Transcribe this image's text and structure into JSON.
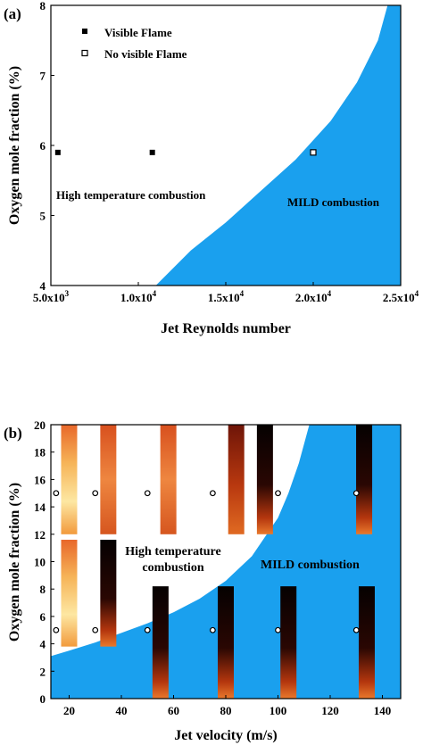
{
  "chart_data": [
    {
      "panel_label": "(a)",
      "type": "scatter",
      "xlabel": "Jet Reynolds number",
      "ylabel": "Oxygen mole fraction (%)",
      "xlim": [
        5000,
        25000
      ],
      "ylim": [
        4,
        8
      ],
      "x_ticks": [
        5000,
        10000,
        15000,
        20000,
        25000
      ],
      "x_tick_labels": [
        {
          "mant": "5.0x10",
          "exp": "3"
        },
        {
          "mant": "1.0x10",
          "exp": "4"
        },
        {
          "mant": "1.5x10",
          "exp": "4"
        },
        {
          "mant": "2.0x10",
          "exp": "4"
        },
        {
          "mant": "2.5x10",
          "exp": "4"
        }
      ],
      "y_ticks": [
        4,
        5,
        6,
        7,
        8
      ],
      "y_tick_labels": [
        "4",
        "5",
        "6",
        "7",
        "8"
      ],
      "legend_position": "top-left",
      "series": [
        {
          "name": "Visible Flame",
          "marker": "filled-square",
          "points": [
            [
              5400,
              5.9
            ],
            [
              10800,
              5.9
            ]
          ]
        },
        {
          "name": "No visible Flame",
          "marker": "open-square",
          "points": [
            [
              20000,
              5.9
            ]
          ]
        }
      ],
      "region_boundary": [
        [
          11000,
          4.0
        ],
        [
          13000,
          4.5
        ],
        [
          15000,
          4.9
        ],
        [
          17000,
          5.35
        ],
        [
          19000,
          5.8
        ],
        [
          21000,
          6.35
        ],
        [
          22500,
          6.9
        ],
        [
          23700,
          7.5
        ],
        [
          24250,
          8.0
        ]
      ],
      "region_color": "#1aa0ee",
      "annotations": [
        "High temperature combustion",
        "MILD combustion"
      ]
    },
    {
      "panel_label": "(b)",
      "type": "scatter",
      "xlabel": "Jet velocity (m/s)",
      "ylabel": "Oxygen mole fraction (%)",
      "xlim": [
        13,
        147
      ],
      "ylim": [
        0,
        20
      ],
      "x_ticks": [
        20,
        40,
        60,
        80,
        100,
        120,
        140
      ],
      "x_tick_labels": [
        "20",
        "40",
        "60",
        "80",
        "100",
        "120",
        "140"
      ],
      "y_ticks": [
        0,
        2,
        4,
        6,
        8,
        10,
        12,
        14,
        16,
        18,
        20
      ],
      "y_tick_labels": [
        "0",
        "2",
        "4",
        "6",
        "8",
        "10",
        "12",
        "14",
        "16",
        "18",
        "20"
      ],
      "series": [
        {
          "marker": "open-circle",
          "points": [
            [
              15,
              15
            ],
            [
              30,
              15
            ],
            [
              50,
              15
            ],
            [
              75,
              15
            ],
            [
              100,
              15
            ],
            [
              130,
              15
            ],
            [
              15,
              5
            ],
            [
              30,
              5
            ],
            [
              50,
              5
            ],
            [
              75,
              5
            ],
            [
              100,
              5
            ],
            [
              130,
              5
            ]
          ]
        }
      ],
      "region_boundary": [
        [
          13,
          3.1
        ],
        [
          20,
          3.5
        ],
        [
          30,
          4.1
        ],
        [
          40,
          4.8
        ],
        [
          50,
          5.5
        ],
        [
          60,
          6.3
        ],
        [
          70,
          7.3
        ],
        [
          80,
          8.6
        ],
        [
          90,
          10.4
        ],
        [
          100,
          13.2
        ],
        [
          104,
          15.0
        ],
        [
          108,
          17.2
        ],
        [
          112,
          20.0
        ]
      ],
      "region_color": "#1aa0ee",
      "annotations": [
        "High temperature",
        "combustion",
        "MILD combustion"
      ],
      "flame_images": [
        {
          "x": 20,
          "ytop": 20,
          "ybot": 12,
          "tone": "bright"
        },
        {
          "x": 35,
          "ytop": 20,
          "ybot": 12,
          "tone": "orange"
        },
        {
          "x": 58,
          "ytop": 20,
          "ybot": 12,
          "tone": "orange"
        },
        {
          "x": 84,
          "ytop": 20,
          "ybot": 12,
          "tone": "deep"
        },
        {
          "x": 95,
          "ytop": 20,
          "ybot": 12,
          "tone": "dark"
        },
        {
          "x": 133,
          "ytop": 20,
          "ybot": 12,
          "tone": "dark"
        },
        {
          "x": 20,
          "ytop": 11.6,
          "ybot": 3.8,
          "tone": "bright"
        },
        {
          "x": 35,
          "ytop": 11.6,
          "ybot": 3.8,
          "tone": "dark"
        },
        {
          "x": 55,
          "ytop": 8.2,
          "ybot": 0,
          "tone": "dark"
        },
        {
          "x": 80,
          "ytop": 8.2,
          "ybot": 0,
          "tone": "dark"
        },
        {
          "x": 104,
          "ytop": 8.2,
          "ybot": 0,
          "tone": "dark"
        },
        {
          "x": 134,
          "ytop": 8.2,
          "ybot": 0,
          "tone": "dark"
        }
      ]
    }
  ]
}
